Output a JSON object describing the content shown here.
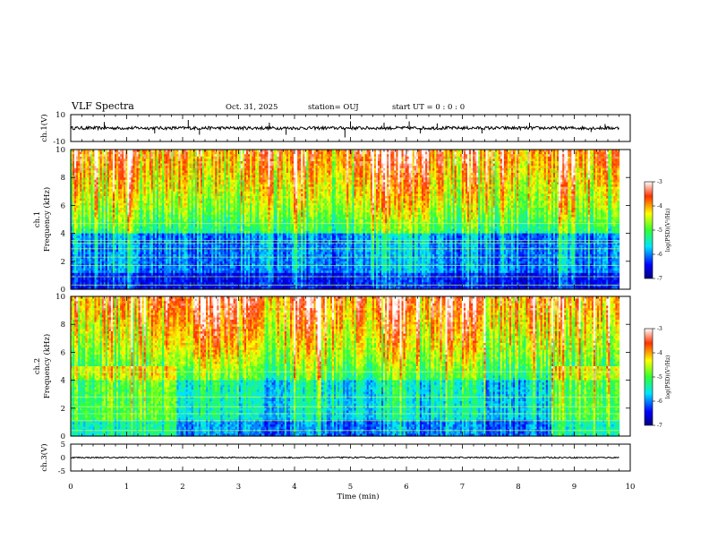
{
  "header": {
    "title": "VLF Spectra",
    "date": "Oct. 31, 2025",
    "station": "station= OUJ",
    "start_ut": "start  UT =   0  : 0   : 0"
  },
  "chart_data": [
    {
      "id": "ch1-waveform",
      "type": "line",
      "ylabel": "ch.1(V)",
      "ylim": [
        -10,
        10
      ],
      "ytick_labels": [
        "10",
        "-10"
      ],
      "xlim": [
        0,
        10
      ],
      "trace": {
        "baseline": 0,
        "noise_amplitude": 1.2,
        "end_min": 9.8
      },
      "spikes": [
        {
          "t": 0.6,
          "v": 4.5
        },
        {
          "t": 1.5,
          "v": -4
        },
        {
          "t": 2.1,
          "v": 6
        },
        {
          "t": 2.3,
          "v": -5
        },
        {
          "t": 3.55,
          "v": 4
        },
        {
          "t": 3.85,
          "v": -5
        },
        {
          "t": 4.9,
          "v": -7
        },
        {
          "t": 5.0,
          "v": 5
        },
        {
          "t": 5.6,
          "v": 4
        },
        {
          "t": 6.05,
          "v": 5
        },
        {
          "t": 6.25,
          "v": -4
        },
        {
          "t": 6.55,
          "v": 3.5
        },
        {
          "t": 7.35,
          "v": -4
        },
        {
          "t": 8.2,
          "v": 4
        },
        {
          "t": 9.3,
          "v": -3
        },
        {
          "t": 9.55,
          "v": 3
        }
      ]
    },
    {
      "id": "ch1-spectrogram",
      "type": "heatmap",
      "ylabel": "ch.1\nFrequency  (kHz)",
      "ylim": [
        0,
        10
      ],
      "ytick_labels": [
        "0",
        "2",
        "4",
        "6",
        "8",
        "10"
      ],
      "xlim": [
        0,
        10
      ],
      "data_end_min": 9.8,
      "colorbar": {
        "label": "log(PSD)(V²/Hz)",
        "range": [
          -7,
          -3
        ],
        "tick_labels": [
          "-3",
          "-4",
          "-5",
          "-6",
          "-7"
        ]
      },
      "bands_khz": [
        0.3,
        0.9,
        1.7,
        2.3,
        2.9,
        3.3,
        3.5,
        4.7
      ],
      "quiet_intervals": [],
      "active_intervals": [
        [
          1.0,
          1.2
        ],
        [
          4.0,
          4.2
        ],
        [
          5.4,
          6.4
        ],
        [
          7.0,
          7.3
        ],
        [
          8.7,
          9.0
        ]
      ]
    },
    {
      "id": "ch2-spectrogram",
      "type": "heatmap",
      "ylabel": "ch.2\nFrequency  (kHz)",
      "ylim": [
        0,
        10
      ],
      "ytick_labels": [
        "0",
        "2",
        "4",
        "6",
        "8",
        "10"
      ],
      "xlim": [
        0,
        10
      ],
      "data_end_min": 9.8,
      "colorbar": {
        "label": "log(PSD)(V²/Hz)",
        "range": [
          -7,
          -3
        ],
        "tick_labels": [
          "-3",
          "-4",
          "-5",
          "-6",
          "-7"
        ]
      },
      "bands_khz": [
        0.4,
        1.1,
        1.6,
        2.1,
        2.8,
        4.6
      ],
      "lowband_elevated_intervals": [
        [
          0,
          1.9
        ],
        [
          8.6,
          9.8
        ]
      ],
      "active_intervals": [
        [
          2.2,
          3.0
        ],
        [
          4.0,
          4.6
        ],
        [
          5.6,
          6.2
        ],
        [
          6.6,
          7.4
        ]
      ]
    },
    {
      "id": "ch3-waveform",
      "type": "line",
      "ylabel": "ch.3(V)",
      "ylim": [
        -5,
        5
      ],
      "ytick_labels": [
        "5",
        "0",
        "-5"
      ],
      "xlim": [
        0,
        10
      ],
      "trace": {
        "baseline": 0,
        "noise_amplitude": 0.25,
        "end_min": 9.8
      }
    }
  ],
  "xaxis": {
    "label": "Time  (min)",
    "tick_labels": [
      "0",
      "1",
      "2",
      "3",
      "4",
      "5",
      "6",
      "7",
      "8",
      "9",
      "10"
    ]
  },
  "colors": {
    "trace": "#000000",
    "axis": "#000000",
    "grid_band": "#c8ff64"
  }
}
